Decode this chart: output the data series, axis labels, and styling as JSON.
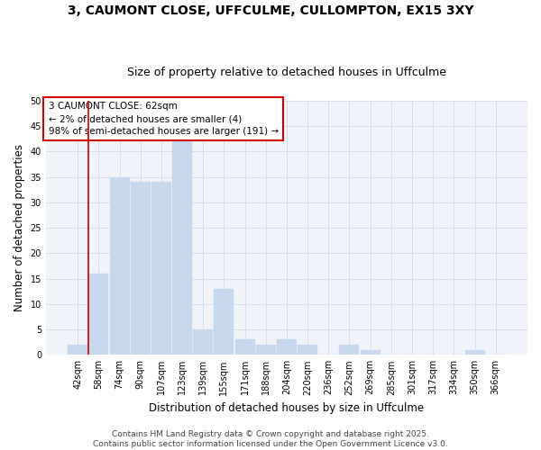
{
  "title": "3, CAUMONT CLOSE, UFFCULME, CULLOMPTON, EX15 3XY",
  "subtitle": "Size of property relative to detached houses in Uffculme",
  "xlabel": "Distribution of detached houses by size in Uffculme",
  "ylabel": "Number of detached properties",
  "bar_color": "#c5d8ed",
  "bar_edge_color": "#c5d8ed",
  "background_color": "#ffffff",
  "plot_bg_color": "#f0f4fa",
  "categories": [
    "42sqm",
    "58sqm",
    "74sqm",
    "90sqm",
    "107sqm",
    "123sqm",
    "139sqm",
    "155sqm",
    "171sqm",
    "188sqm",
    "204sqm",
    "220sqm",
    "236sqm",
    "252sqm",
    "269sqm",
    "285sqm",
    "301sqm",
    "317sqm",
    "334sqm",
    "350sqm",
    "366sqm"
  ],
  "values": [
    2,
    16,
    35,
    34,
    34,
    42,
    5,
    13,
    3,
    2,
    3,
    2,
    0,
    2,
    1,
    0,
    0,
    0,
    0,
    1,
    0
  ],
  "ylim": [
    0,
    50
  ],
  "yticks": [
    0,
    5,
    10,
    15,
    20,
    25,
    30,
    35,
    40,
    45,
    50
  ],
  "vline_x_index": 1,
  "vline_color": "#cc0000",
  "annotation_text": "3 CAUMONT CLOSE: 62sqm\n← 2% of detached houses are smaller (4)\n98% of semi-detached houses are larger (191) →",
  "annotation_box_color": "#ffffff",
  "annotation_box_edge": "#cc0000",
  "footer_text": "Contains HM Land Registry data © Crown copyright and database right 2025.\nContains public sector information licensed under the Open Government Licence v3.0.",
  "grid_color": "#d0dce8",
  "title_fontsize": 10,
  "subtitle_fontsize": 9,
  "axis_label_fontsize": 8.5,
  "tick_fontsize": 7,
  "annotation_fontsize": 7.5,
  "footer_fontsize": 6.5
}
